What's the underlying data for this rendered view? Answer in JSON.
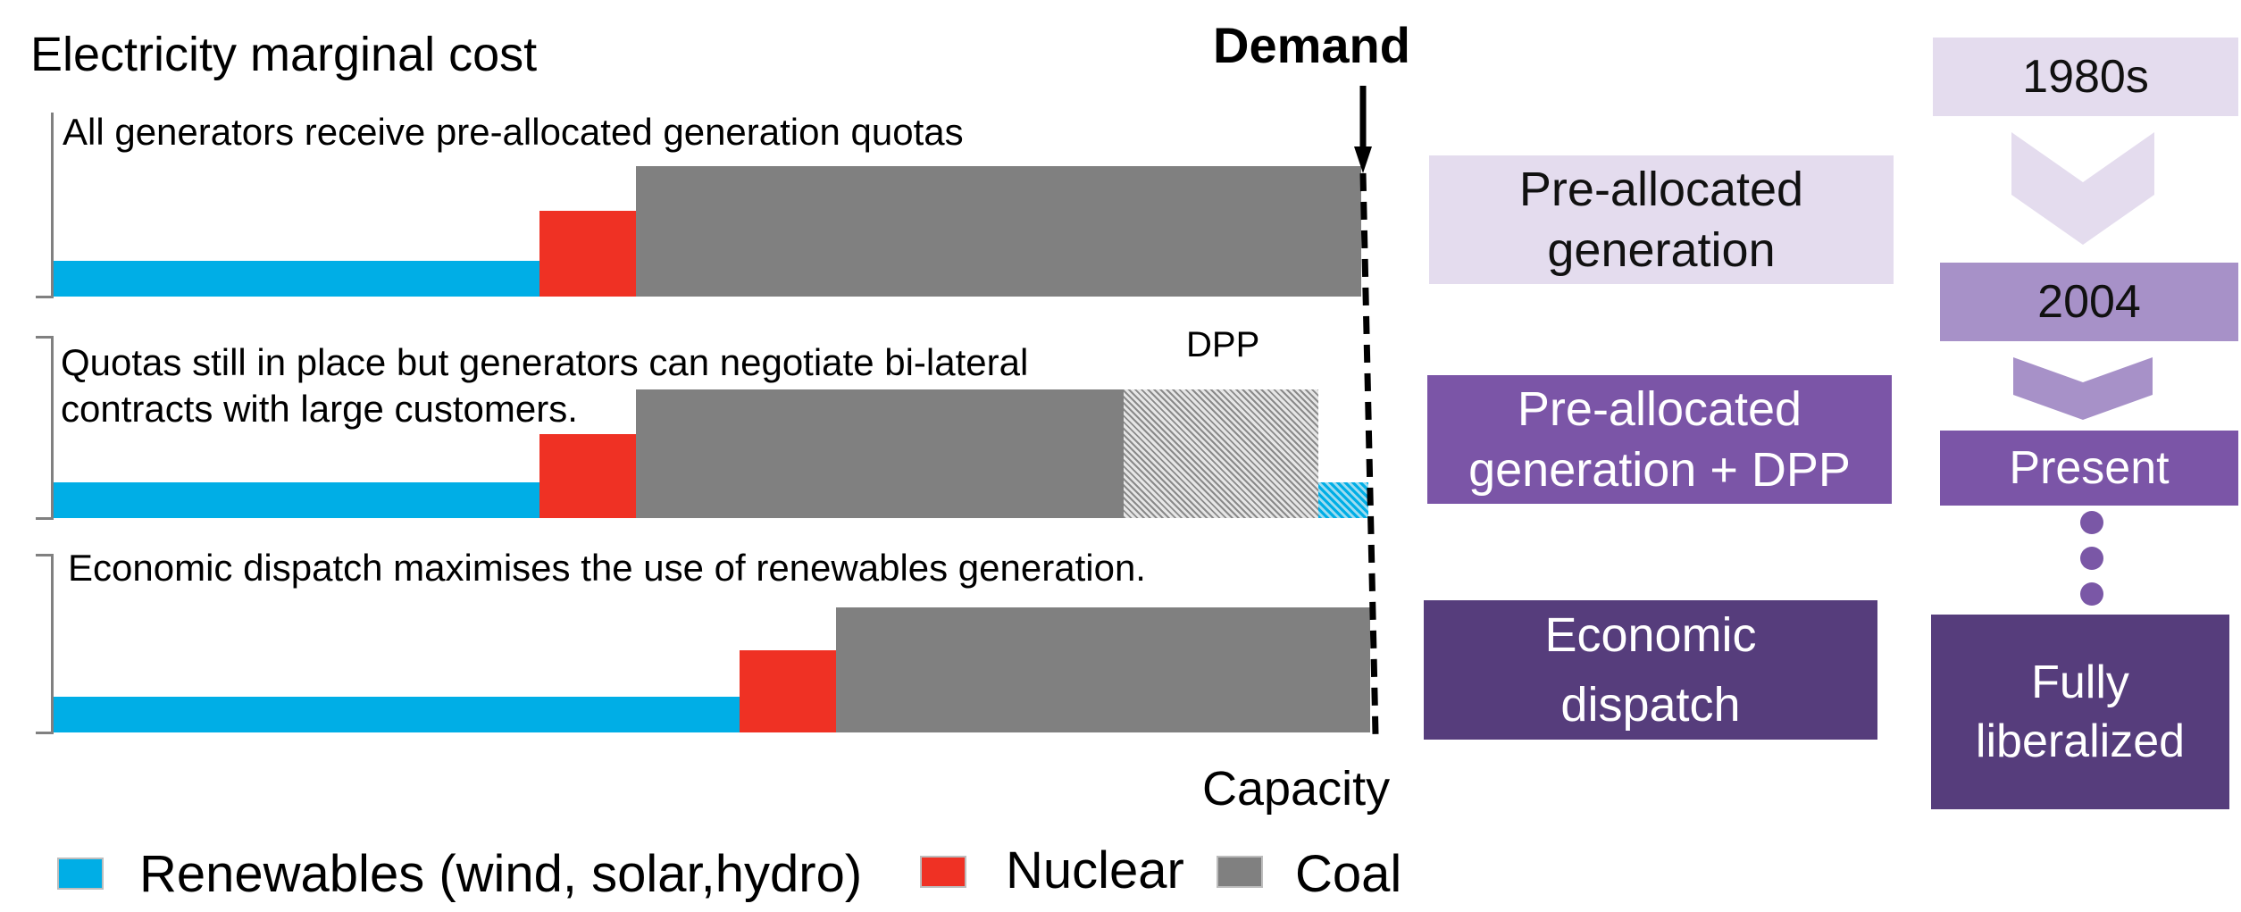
{
  "chart": {
    "title": "Electricity marginal cost",
    "x_axis_label": "Capacity",
    "demand_label": "Demand",
    "dpp_label": "DPP"
  },
  "panels": [
    {
      "caption": "All generators receive pre-allocated generation quotas"
    },
    {
      "caption_line1": "Quotas still in place but generators can negotiate bi-lateral",
      "caption_line2": "contracts with large customers."
    },
    {
      "caption": "Economic dispatch maximises the use of renewables generation."
    }
  ],
  "stages": [
    {
      "line1": "Pre-allocated",
      "line2": "generation"
    },
    {
      "line1": "Pre-allocated",
      "line2": "generation + DPP"
    },
    {
      "line1": "Economic",
      "line2": "dispatch"
    }
  ],
  "timeline": [
    {
      "label": "1980s"
    },
    {
      "label": "2004"
    },
    {
      "label": "Present"
    },
    {
      "line1": "Fully",
      "line2": "liberalized"
    }
  ],
  "legend": [
    {
      "label": "Renewables (wind, solar,hydro)",
      "color": "#00aee6"
    },
    {
      "label": "Nuclear",
      "color": "#ef3124"
    },
    {
      "label": "Coal",
      "color": "#808080"
    }
  ],
  "colors": {
    "renewables": "#00aee6",
    "nuclear": "#ef3124",
    "coal": "#808080",
    "stage1": "#e4dcee",
    "stage2": "#7b55a7",
    "stage3": "#563d7c",
    "timeline1": "#e4dcee",
    "timeline2": "#a791c8",
    "timeline3": "#7b55a7",
    "timeline4": "#563d7c"
  }
}
